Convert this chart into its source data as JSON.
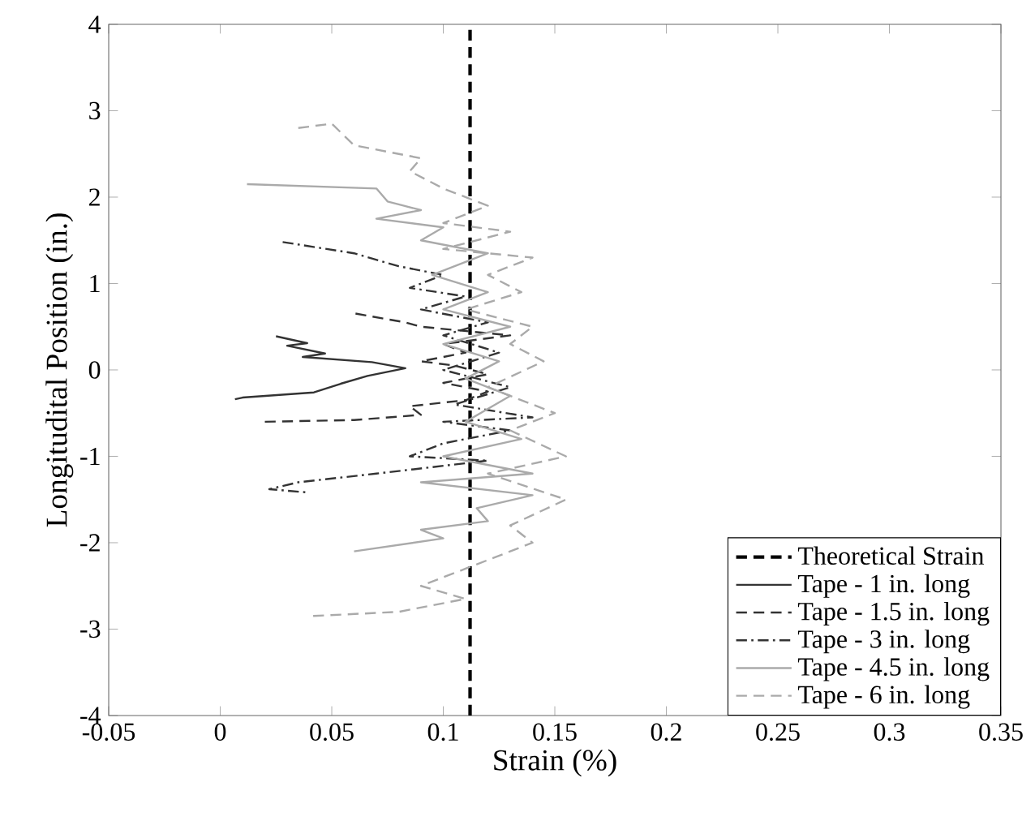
{
  "chart_data": {
    "type": "line",
    "xlabel": "Strain (%)",
    "ylabel": "Longitudital Position (in.)",
    "xlim": [
      -0.05,
      0.35
    ],
    "ylim": [
      -4,
      4
    ],
    "xticks": [
      -0.05,
      0,
      0.05,
      0.1,
      0.15,
      0.2,
      0.25,
      0.3,
      0.35
    ],
    "yticks": [
      -4,
      -3,
      -2,
      -1,
      0,
      1,
      2,
      3,
      4
    ],
    "grid": false,
    "legend": "bottom right",
    "marker": "none",
    "series": [
      {
        "name": "Theoretical Strain",
        "color": "#000000",
        "line_style": "dashed",
        "x": [
          0.112,
          0.112
        ],
        "values": [
          -4,
          4
        ]
      },
      {
        "name": "Tape - 1 in. long",
        "color": "#333333",
        "line_style": "solid",
        "x": [
          0.0066,
          0.01,
          0.042,
          0.054,
          0.066,
          0.083,
          0.068,
          0.037,
          0.047,
          0.03,
          0.039,
          0.025
        ],
        "values": [
          -0.34,
          -0.32,
          -0.26,
          -0.16,
          -0.07,
          0.02,
          0.09,
          0.15,
          0.19,
          0.28,
          0.31,
          0.39
        ]
      },
      {
        "name": "Tape - 1.5 in. long",
        "color": "#333333",
        "line_style": "dashed",
        "x": [
          0.02,
          0.06,
          0.09,
          0.085,
          0.11,
          0.12,
          0.1,
          0.12,
          0.105,
          0.09,
          0.11,
          0.1,
          0.13,
          0.09,
          0.083,
          0.059
        ],
        "values": [
          -0.6,
          -0.58,
          -0.52,
          -0.42,
          -0.35,
          -0.25,
          -0.15,
          -0.05,
          0.05,
          0.1,
          0.2,
          0.3,
          0.4,
          0.5,
          0.55,
          0.66
        ]
      },
      {
        "name": "Tape - 3 in. long",
        "color": "#333333",
        "line_style": "dashdot",
        "x": [
          0.028,
          0.06,
          0.08,
          0.1,
          0.085,
          0.11,
          0.09,
          0.12,
          0.1,
          0.125,
          0.1,
          0.13,
          0.105,
          0.14,
          0.1,
          0.13,
          0.1,
          0.085,
          0.12,
          0.07,
          0.035,
          0.022,
          0.04
        ],
        "values": [
          1.48,
          1.35,
          1.2,
          1.1,
          0.95,
          0.85,
          0.7,
          0.55,
          0.4,
          0.2,
          0.0,
          -0.2,
          -0.4,
          -0.55,
          -0.6,
          -0.7,
          -0.85,
          -1.0,
          -1.05,
          -1.2,
          -1.3,
          -1.38,
          -1.42
        ]
      },
      {
        "name": "Tape - 4.5 in. long",
        "color": "#aaaaaa",
        "line_style": "solid",
        "x": [
          0.012,
          0.07,
          0.075,
          0.09,
          0.07,
          0.1,
          0.09,
          0.12,
          0.095,
          0.12,
          0.1,
          0.13,
          0.1,
          0.125,
          0.11,
          0.13,
          0.11,
          0.135,
          0.1,
          0.14,
          0.09,
          0.14,
          0.115,
          0.12,
          0.09,
          0.1,
          0.06
        ],
        "values": [
          2.15,
          2.1,
          1.95,
          1.85,
          1.75,
          1.65,
          1.5,
          1.35,
          1.1,
          0.9,
          0.7,
          0.5,
          0.3,
          0.1,
          -0.1,
          -0.3,
          -0.6,
          -0.8,
          -1.0,
          -1.2,
          -1.3,
          -1.45,
          -1.6,
          -1.75,
          -1.85,
          -1.95,
          -2.1
        ]
      },
      {
        "name": "Tape - 6 in. long",
        "color": "#aaaaaa",
        "line_style": "dashed",
        "x": [
          0.035,
          0.05,
          0.06,
          0.09,
          0.085,
          0.1,
          0.12,
          0.1,
          0.13,
          0.1,
          0.14,
          0.12,
          0.135,
          0.11,
          0.14,
          0.13,
          0.145,
          0.12,
          0.15,
          0.13,
          0.155,
          0.12,
          0.155,
          0.13,
          0.14,
          0.11,
          0.09,
          0.11,
          0.08,
          0.04
        ],
        "values": [
          2.8,
          2.85,
          2.6,
          2.45,
          2.3,
          2.1,
          1.9,
          1.7,
          1.6,
          1.4,
          1.3,
          1.1,
          0.9,
          0.7,
          0.5,
          0.3,
          0.1,
          -0.2,
          -0.5,
          -0.7,
          -1.0,
          -1.2,
          -1.5,
          -1.8,
          -2.0,
          -2.3,
          -2.5,
          -2.65,
          -2.8,
          -2.85
        ]
      }
    ]
  }
}
